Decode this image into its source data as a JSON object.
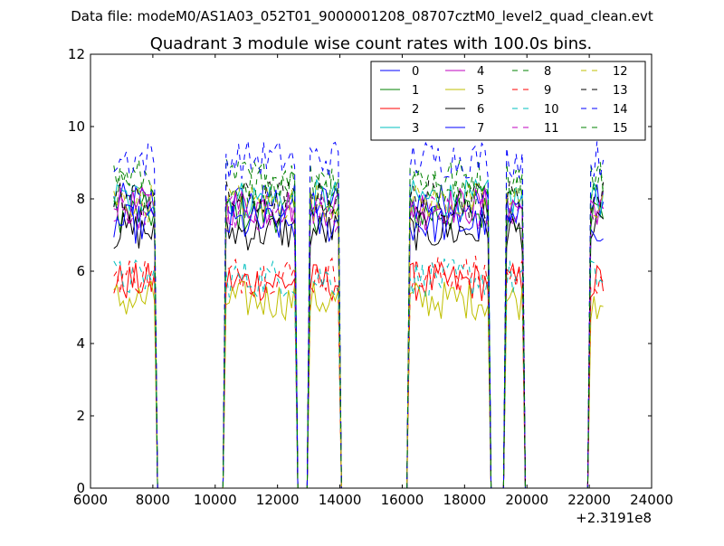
{
  "figure": {
    "suptitle": "Data file: modeM0/AS1A03_052T01_9000001208_08707cztM0_level2_quad_clean.evt"
  },
  "chart_data": {
    "type": "line",
    "title": "Quadrant 3 module wise count rates with 100.0s bins.",
    "xlabel": "",
    "ylabel": "",
    "x_offset_label": "+2.3191e8",
    "xlim": [
      6000,
      24000
    ],
    "ylim": [
      0,
      12
    ],
    "xticks": [
      6000,
      8000,
      10000,
      12000,
      14000,
      16000,
      18000,
      20000,
      22000,
      24000
    ],
    "yticks": [
      0,
      2,
      4,
      6,
      8,
      10,
      12
    ],
    "grid": false,
    "legend_position": "top-right",
    "legend_columns": 4,
    "series": [
      {
        "name": "0",
        "color": "#0000ff",
        "dash": "solid",
        "level": 7.9
      },
      {
        "name": "1",
        "color": "#008000",
        "dash": "solid",
        "level": 7.6
      },
      {
        "name": "2",
        "color": "#ff0000",
        "dash": "solid",
        "level": 5.7
      },
      {
        "name": "3",
        "color": "#00bfbf",
        "dash": "solid",
        "level": 8.0
      },
      {
        "name": "4",
        "color": "#bf00bf",
        "dash": "solid",
        "level": 7.8
      },
      {
        "name": "5",
        "color": "#bfbf00",
        "dash": "solid",
        "level": 5.2
      },
      {
        "name": "6",
        "color": "#000000",
        "dash": "solid",
        "level": 7.1
      },
      {
        "name": "7",
        "color": "#0000ff",
        "dash": "solid",
        "level": 7.3
      },
      {
        "name": "8",
        "color": "#008000",
        "dash": "dashed",
        "level": 8.6
      },
      {
        "name": "9",
        "color": "#ff0000",
        "dash": "dashed",
        "level": 5.9
      },
      {
        "name": "10",
        "color": "#00bfbf",
        "dash": "dashed",
        "level": 5.8
      },
      {
        "name": "11",
        "color": "#bf00bf",
        "dash": "dashed",
        "level": 7.6
      },
      {
        "name": "12",
        "color": "#bfbf00",
        "dash": "dashed",
        "level": 7.9
      },
      {
        "name": "13",
        "color": "#000000",
        "dash": "dashed",
        "level": 8.0
      },
      {
        "name": "14",
        "color": "#0000ff",
        "dash": "dashed",
        "level": 9.1
      },
      {
        "name": "15",
        "color": "#008000",
        "dash": "dashed",
        "level": 8.3
      }
    ],
    "segments": [
      {
        "start": 6750,
        "end": 8150,
        "scale": 1.0
      },
      {
        "start": 8150,
        "end": 10350,
        "scale": 0.0
      },
      {
        "start": 10350,
        "end": 12650,
        "scale": 1.0
      },
      {
        "start": 12650,
        "end": 13050,
        "scale": 0.0
      },
      {
        "start": 13050,
        "end": 14050,
        "scale": 1.0
      },
      {
        "start": 14050,
        "end": 16250,
        "scale": 0.0
      },
      {
        "start": 16250,
        "end": 18850,
        "scale": 1.0
      },
      {
        "start": 18850,
        "end": 19350,
        "scale": 0.0
      },
      {
        "start": 19350,
        "end": 19950,
        "scale": 1.0
      },
      {
        "start": 19950,
        "end": 22050,
        "scale": 0.0
      },
      {
        "start": 22050,
        "end": 22450,
        "scale": 1.0
      }
    ]
  }
}
